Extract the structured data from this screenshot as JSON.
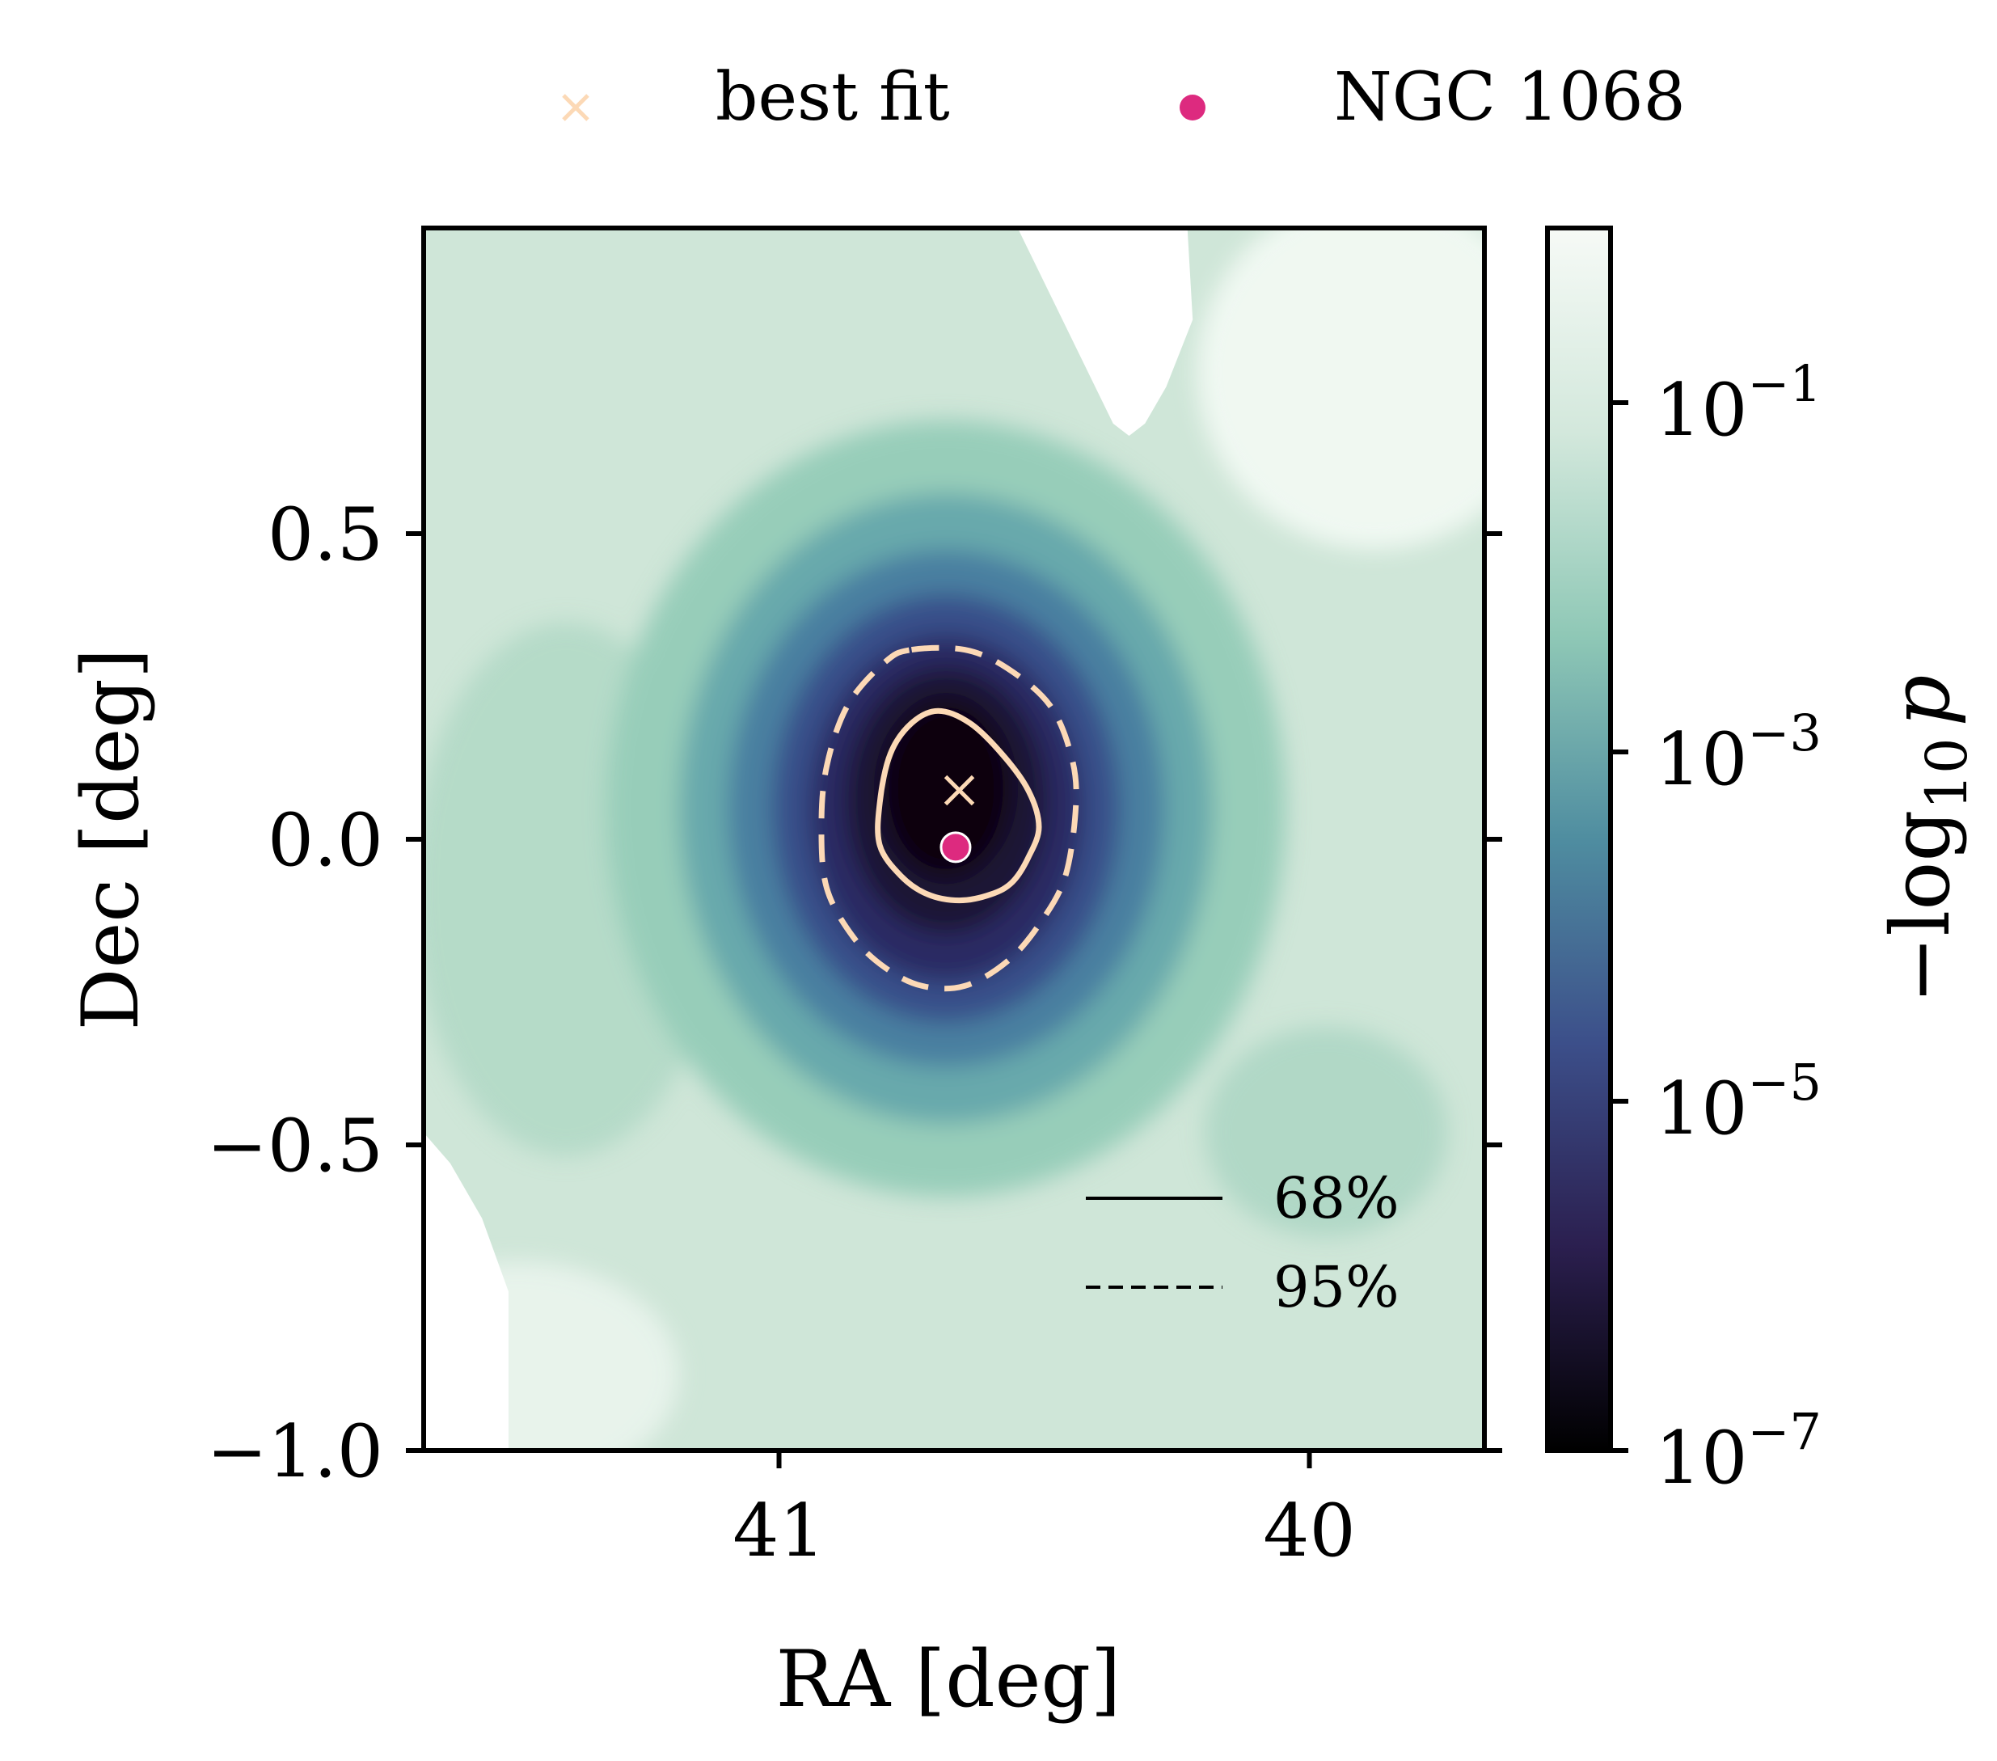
{
  "chart_data": {
    "type": "heatmap",
    "title": "",
    "xlabel": "RA [deg]",
    "ylabel": "Dec [deg]",
    "x_axis_inverted": true,
    "xlim": [
      41.67,
      39.67
    ],
    "ylim": [
      -1.0,
      1.0
    ],
    "xticks": [
      {
        "value": 41,
        "label": "41"
      },
      {
        "value": 40,
        "label": "40"
      }
    ],
    "yticks": [
      {
        "value": 0.5,
        "label": "0.5"
      },
      {
        "value": 0.0,
        "label": "0.0"
      },
      {
        "value": -0.5,
        "label": "−0.5"
      },
      {
        "value": -1.0,
        "label": "−1.0"
      }
    ],
    "colorbar": {
      "label": "−log",
      "label_subscript": "10",
      "label_variable": "p",
      "scale": "log",
      "range": [
        1e-07,
        1.0
      ],
      "colors": [
        "#000000",
        "#2b1f4f",
        "#3c4f8a",
        "#4f8da0",
        "#8fc8b6",
        "#d3e8dc",
        "#f6faf6"
      ],
      "ticks": [
        {
          "value": 1e-07,
          "base": "10",
          "exponent": "−7"
        },
        {
          "value": 1e-05,
          "base": "10",
          "exponent": "−5"
        },
        {
          "value": 0.001,
          "base": "10",
          "exponent": "−3"
        },
        {
          "value": 0.1,
          "base": "10",
          "exponent": "−1"
        }
      ]
    },
    "markers": [
      {
        "name": "best fit",
        "symbol": "x",
        "ra": 40.66,
        "dec": 0.08,
        "color": "#fcd9b6"
      },
      {
        "name": "NGC 1068",
        "symbol": "o",
        "ra": 40.667,
        "dec": -0.013,
        "color": "#dd2a7f"
      }
    ],
    "contours": [
      {
        "label": "68%",
        "style": "solid",
        "color": "#fcd9b6",
        "ra": [
          40.7,
          40.64,
          40.58,
          40.53,
          40.51,
          40.53,
          40.56,
          40.6,
          40.66,
          40.72,
          40.77,
          40.81,
          40.81,
          40.79,
          40.75,
          40.7
        ],
        "dec": [
          0.21,
          0.19,
          0.14,
          0.08,
          0.02,
          -0.03,
          -0.07,
          -0.09,
          -0.1,
          -0.09,
          -0.06,
          -0.01,
          0.06,
          0.14,
          0.19,
          0.21
        ]
      },
      {
        "label": "95%",
        "style": "dashed",
        "color": "#fcd9b6",
        "ra": [
          40.75,
          40.65,
          40.57,
          40.49,
          40.45,
          40.44,
          40.46,
          40.51,
          40.57,
          40.65,
          40.73,
          40.8,
          40.86,
          40.91,
          40.92,
          40.91,
          40.87,
          40.8,
          40.75
        ],
        "dec": [
          0.31,
          0.31,
          0.28,
          0.22,
          0.14,
          0.06,
          -0.06,
          -0.14,
          -0.2,
          -0.24,
          -0.24,
          -0.21,
          -0.16,
          -0.08,
          0.02,
          0.12,
          0.22,
          0.29,
          0.31
        ]
      }
    ],
    "empty_regions": [
      {
        "ra": [
          40.55,
          40.23,
          40.22,
          40.27,
          40.31,
          40.34,
          40.37,
          40.55
        ],
        "dec": [
          1.0,
          1.0,
          0.85,
          0.74,
          0.68,
          0.66,
          0.68,
          1.0
        ]
      },
      {
        "ra": [
          41.67,
          41.67,
          41.51,
          41.51,
          41.56,
          41.62,
          41.67
        ],
        "dec": [
          -0.48,
          -1.0,
          -1.0,
          -0.74,
          -0.62,
          -0.53,
          -0.48
        ]
      }
    ],
    "legend_markers_placement": "top",
    "legend_contours_placement": "bottom-right"
  }
}
